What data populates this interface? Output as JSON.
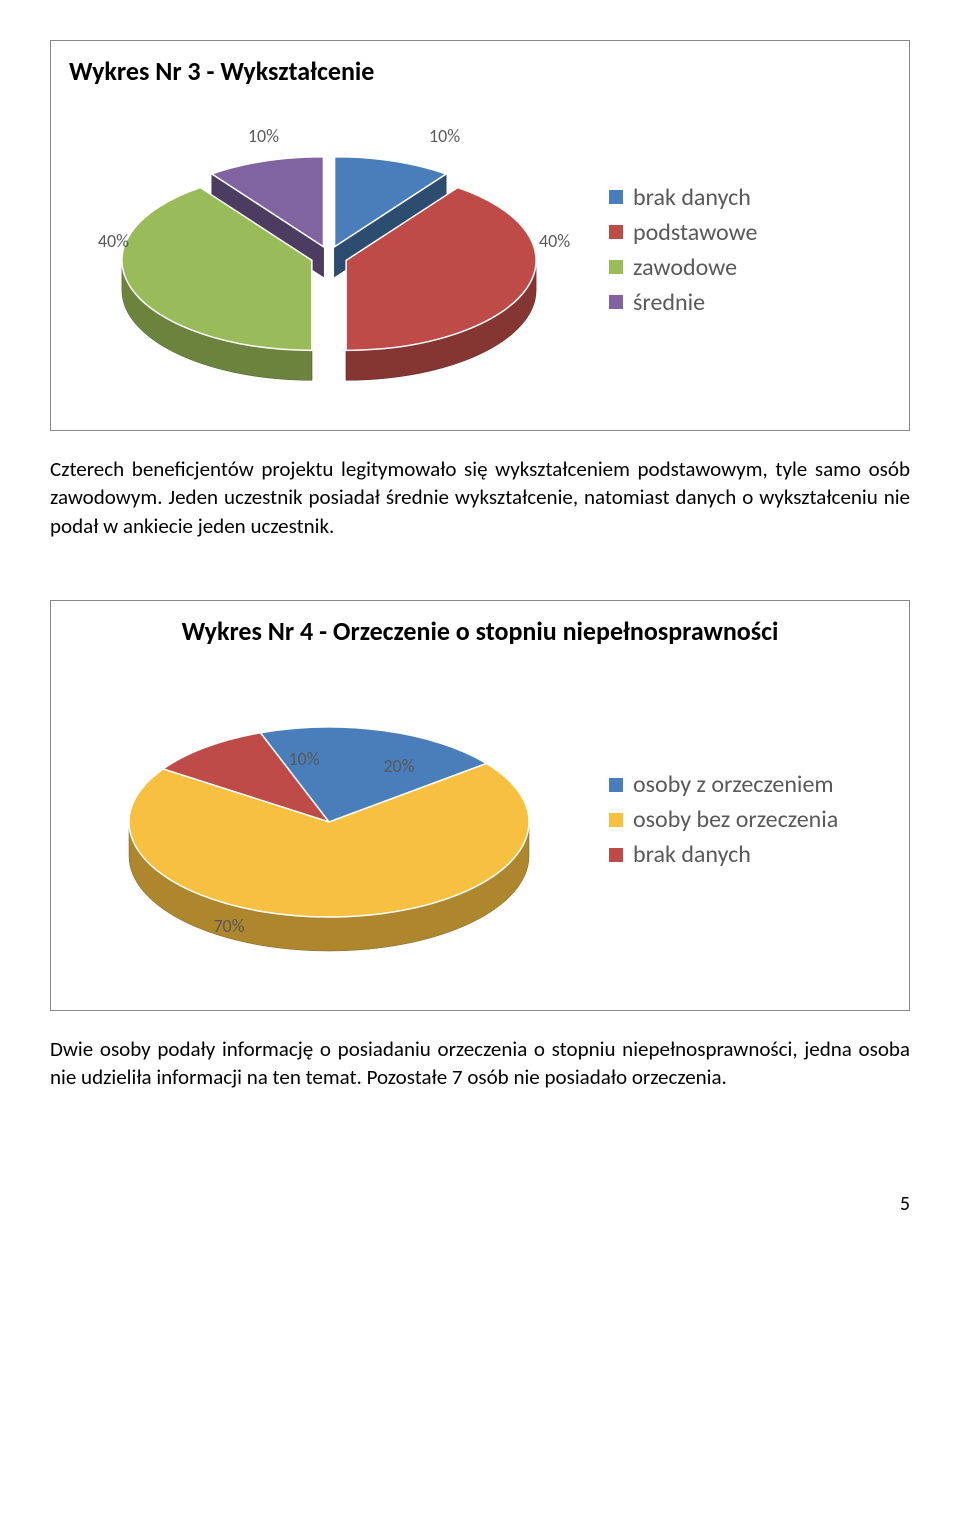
{
  "chart1": {
    "type": "pie-3d-exploded",
    "title": "Wykres Nr 3 - Wykształcenie",
    "title_fontsize": 26,
    "title_weight": "bold",
    "slices": [
      {
        "label": "brak danych",
        "value": 10,
        "color": "#4a7ebb",
        "display": "10%"
      },
      {
        "label": "podstawowe",
        "value": 40,
        "color": "#be4b48",
        "display": "40%"
      },
      {
        "label": "zawodowe",
        "value": 40,
        "color": "#9abb59",
        "display": "40%"
      },
      {
        "label": "średnie",
        "value": 10,
        "color": "#8064a2",
        "display": "10%"
      }
    ],
    "legend_fontsize": 24,
    "legend_color": "#595959",
    "label_fontsize": 18,
    "label_color": "#595959",
    "border_color": "#888888",
    "background_color": "#ffffff"
  },
  "paragraph1": "Czterech beneficjentów projektu legitymowało się wykształceniem podstawowym, tyle samo osób zawodowym. Jeden uczestnik posiadał średnie wykształcenie, natomiast danych o wykształceniu nie podał w ankiecie jeden uczestnik.",
  "chart2": {
    "type": "pie-3d",
    "title": "Wykres Nr 4 - Orzeczenie o stopniu niepełnosprawności",
    "title_fontsize": 26,
    "title_weight": "bold",
    "slices": [
      {
        "label": "osoby z orzeczeniem",
        "value": 20,
        "color": "#4a7ebb",
        "display": "20%"
      },
      {
        "label": "osoby bez orzeczenia",
        "value": 70,
        "color": "#f8c040",
        "display": "70%"
      },
      {
        "label": "brak danych",
        "value": 10,
        "color": "#be4b48",
        "display": "10%"
      }
    ],
    "legend_fontsize": 24,
    "legend_color": "#595959",
    "label_fontsize": 18,
    "label_color": "#595959",
    "border_color": "#888888",
    "background_color": "#ffffff"
  },
  "paragraph2": "Dwie osoby podały informację o posiadaniu orzeczenia o stopniu niepełnosprawności, jedna osoba nie udzieliła informacji na ten temat. Pozostałe 7 osób nie posiadało orzeczenia.",
  "page_number": "5"
}
